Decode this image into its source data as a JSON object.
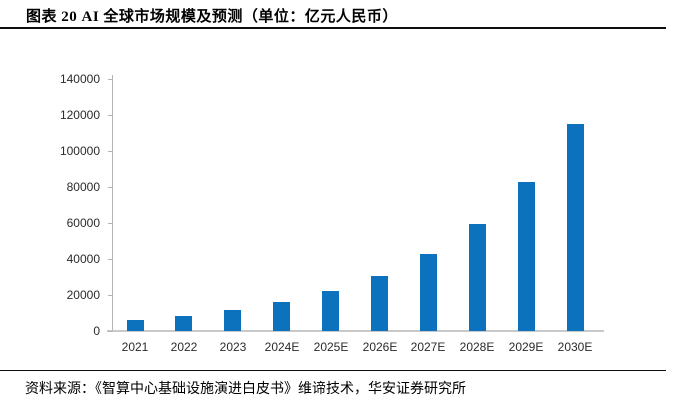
{
  "figure": {
    "title": "图表 20 AI 全球市场规模及预测（单位：亿元人民币）",
    "source": "资料来源：《智算中心基础设施演进白皮书》维谛技术，华安证券研究所"
  },
  "colors": {
    "bar": "#0d72be",
    "axis": "#b3b3b3",
    "baseline": "#c9c9c9",
    "rule": "#0f0c0c",
    "tick_label": "#2b2b2b"
  },
  "chart_data": {
    "type": "bar",
    "title": "AI 全球市场规模及预测",
    "unit": "亿元人民币",
    "categories": [
      "2021",
      "2022",
      "2023",
      "2024E",
      "2025E",
      "2026E",
      "2027E",
      "2028E",
      "2029E",
      "2030E"
    ],
    "values": [
      6200,
      8400,
      11900,
      16000,
      22400,
      30700,
      42800,
      59600,
      82800,
      115000
    ],
    "xlabel": "",
    "ylabel": "",
    "ylim": [
      0,
      140000
    ],
    "ytick_step": 20000,
    "yticks": [
      "0",
      "20000",
      "40000",
      "60000",
      "80000",
      "100000",
      "120000",
      "140000"
    ],
    "grid": false,
    "legend_position": "none",
    "bar_color": "#0d72be"
  }
}
